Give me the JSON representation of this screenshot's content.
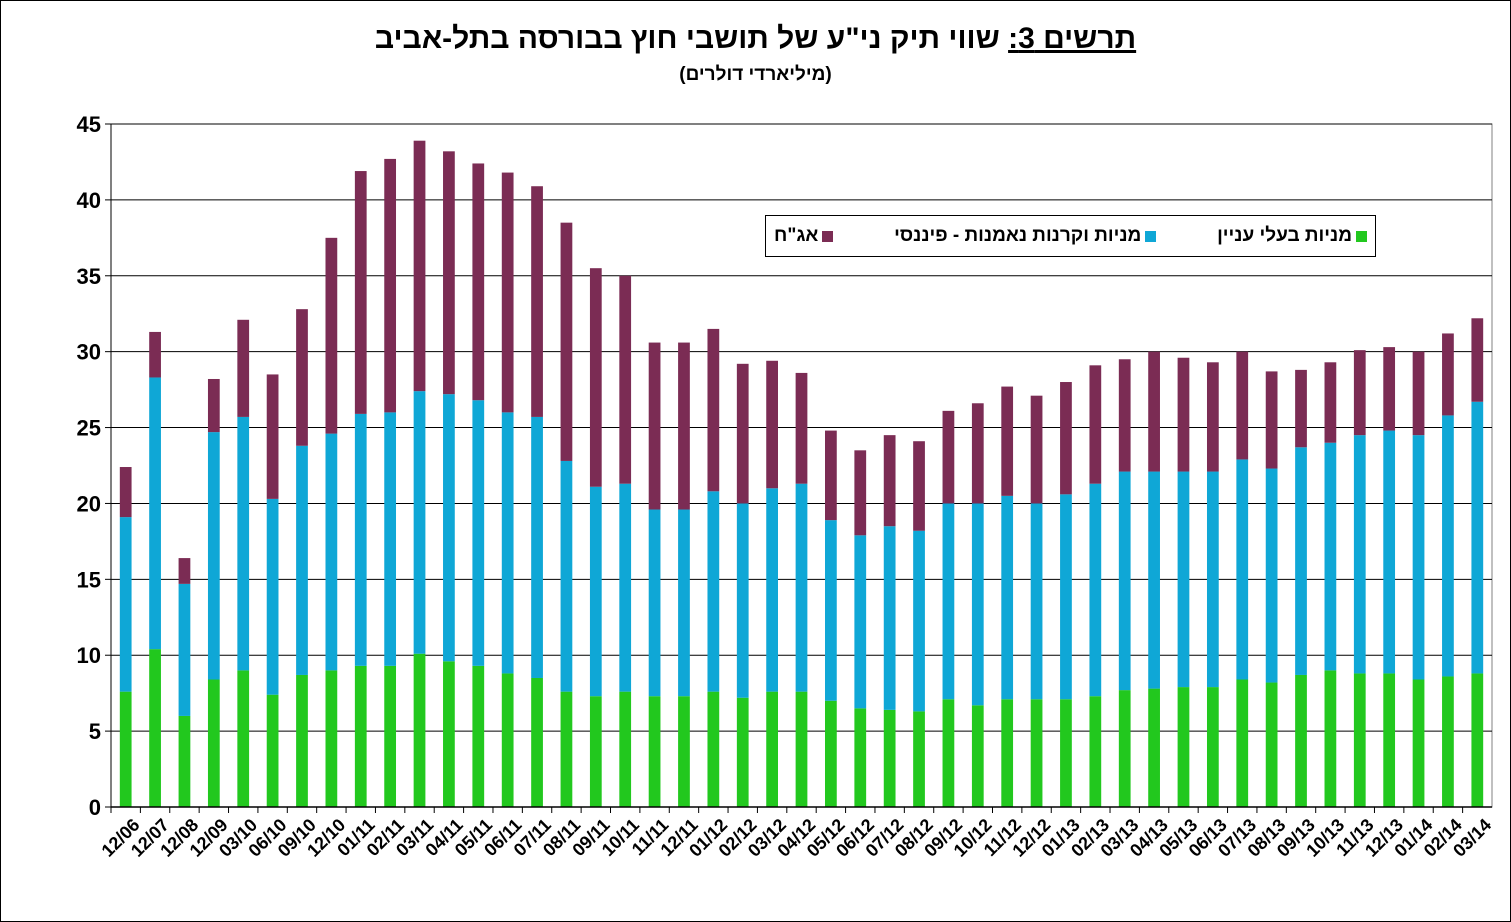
{
  "title": {
    "prefix": "תרשים 3:",
    "text": " שווי תיק ני\"ע של תושבי חוץ בבורסה בתל-אביב",
    "subtitle": "(מיליארדי דולרים)"
  },
  "legend": [
    {
      "label": "אג\"ח",
      "color": "#7B2C54"
    },
    {
      "label": "מניות וקרנות נאמנות - פיננסי",
      "color": "#0FA7D6"
    },
    {
      "label": "מניות בעלי עניין",
      "color": "#22C81E"
    }
  ],
  "chart_data": {
    "type": "bar",
    "stacked": true,
    "ylim": [
      0,
      45
    ],
    "yticks": [
      0,
      5,
      10,
      15,
      20,
      25,
      30,
      35,
      40,
      45
    ],
    "grid": true,
    "legend_position": "top-right",
    "categories": [
      "12/06",
      "12/07",
      "12/08",
      "12/09",
      "03/10",
      "06/10",
      "09/10",
      "12/10",
      "01/11",
      "02/11",
      "03/11",
      "04/11",
      "05/11",
      "06/11",
      "07/11",
      "08/11",
      "09/11",
      "10/11",
      "11/11",
      "12/11",
      "01/12",
      "02/12",
      "03/12",
      "04/12",
      "05/12",
      "06/12",
      "07/12",
      "08/12",
      "09/12",
      "10/12",
      "11/12",
      "12/12",
      "01/13",
      "02/13",
      "03/13",
      "04/13",
      "05/13",
      "06/13",
      "07/13",
      "08/13",
      "09/13",
      "10/13",
      "11/13",
      "12/13",
      "01/14",
      "02/14",
      "03/14"
    ],
    "series": [
      {
        "name": "מניות בעלי עניין",
        "color": "#22C81E",
        "values": [
          7.6,
          10.4,
          6.0,
          8.4,
          9.0,
          7.4,
          8.7,
          9.0,
          9.3,
          9.3,
          10.1,
          9.6,
          9.3,
          8.8,
          8.5,
          7.6,
          7.3,
          7.6,
          7.3,
          7.3,
          7.6,
          7.2,
          7.6,
          7.6,
          7.0,
          6.5,
          6.4,
          6.3,
          7.1,
          6.7,
          7.1,
          7.1,
          7.1,
          7.3,
          7.7,
          7.8,
          7.9,
          7.9,
          8.4,
          8.2,
          8.7,
          9.0,
          8.8,
          8.8,
          8.4,
          8.6,
          8.8
        ]
      },
      {
        "name": "מניות וקרנות נאמנות - פיננסי",
        "color": "#0FA7D6",
        "values": [
          11.5,
          17.9,
          8.7,
          16.3,
          16.7,
          12.9,
          15.1,
          15.6,
          16.6,
          16.7,
          17.3,
          17.6,
          17.5,
          17.2,
          17.2,
          15.2,
          13.8,
          13.7,
          12.3,
          12.3,
          13.2,
          12.8,
          13.4,
          13.7,
          11.9,
          11.4,
          12.1,
          11.9,
          12.9,
          13.3,
          13.4,
          12.9,
          13.5,
          14.0,
          14.4,
          14.3,
          14.2,
          14.2,
          14.5,
          14.1,
          15.0,
          15.0,
          15.7,
          16.0,
          16.1,
          17.2,
          17.9
        ]
      },
      {
        "name": "אג\"ח",
        "color": "#7B2C54",
        "values": [
          3.3,
          3.0,
          1.7,
          3.5,
          6.4,
          8.2,
          9.0,
          12.9,
          16.0,
          16.7,
          16.5,
          16.0,
          15.6,
          15.8,
          15.2,
          15.7,
          14.4,
          13.7,
          11.0,
          11.0,
          10.7,
          9.2,
          8.4,
          7.3,
          5.9,
          5.6,
          6.0,
          5.9,
          6.1,
          6.6,
          7.2,
          7.1,
          7.4,
          7.8,
          7.4,
          7.9,
          7.5,
          7.2,
          7.1,
          6.4,
          5.1,
          5.3,
          5.6,
          5.5,
          5.5,
          5.4,
          5.5
        ]
      }
    ]
  }
}
